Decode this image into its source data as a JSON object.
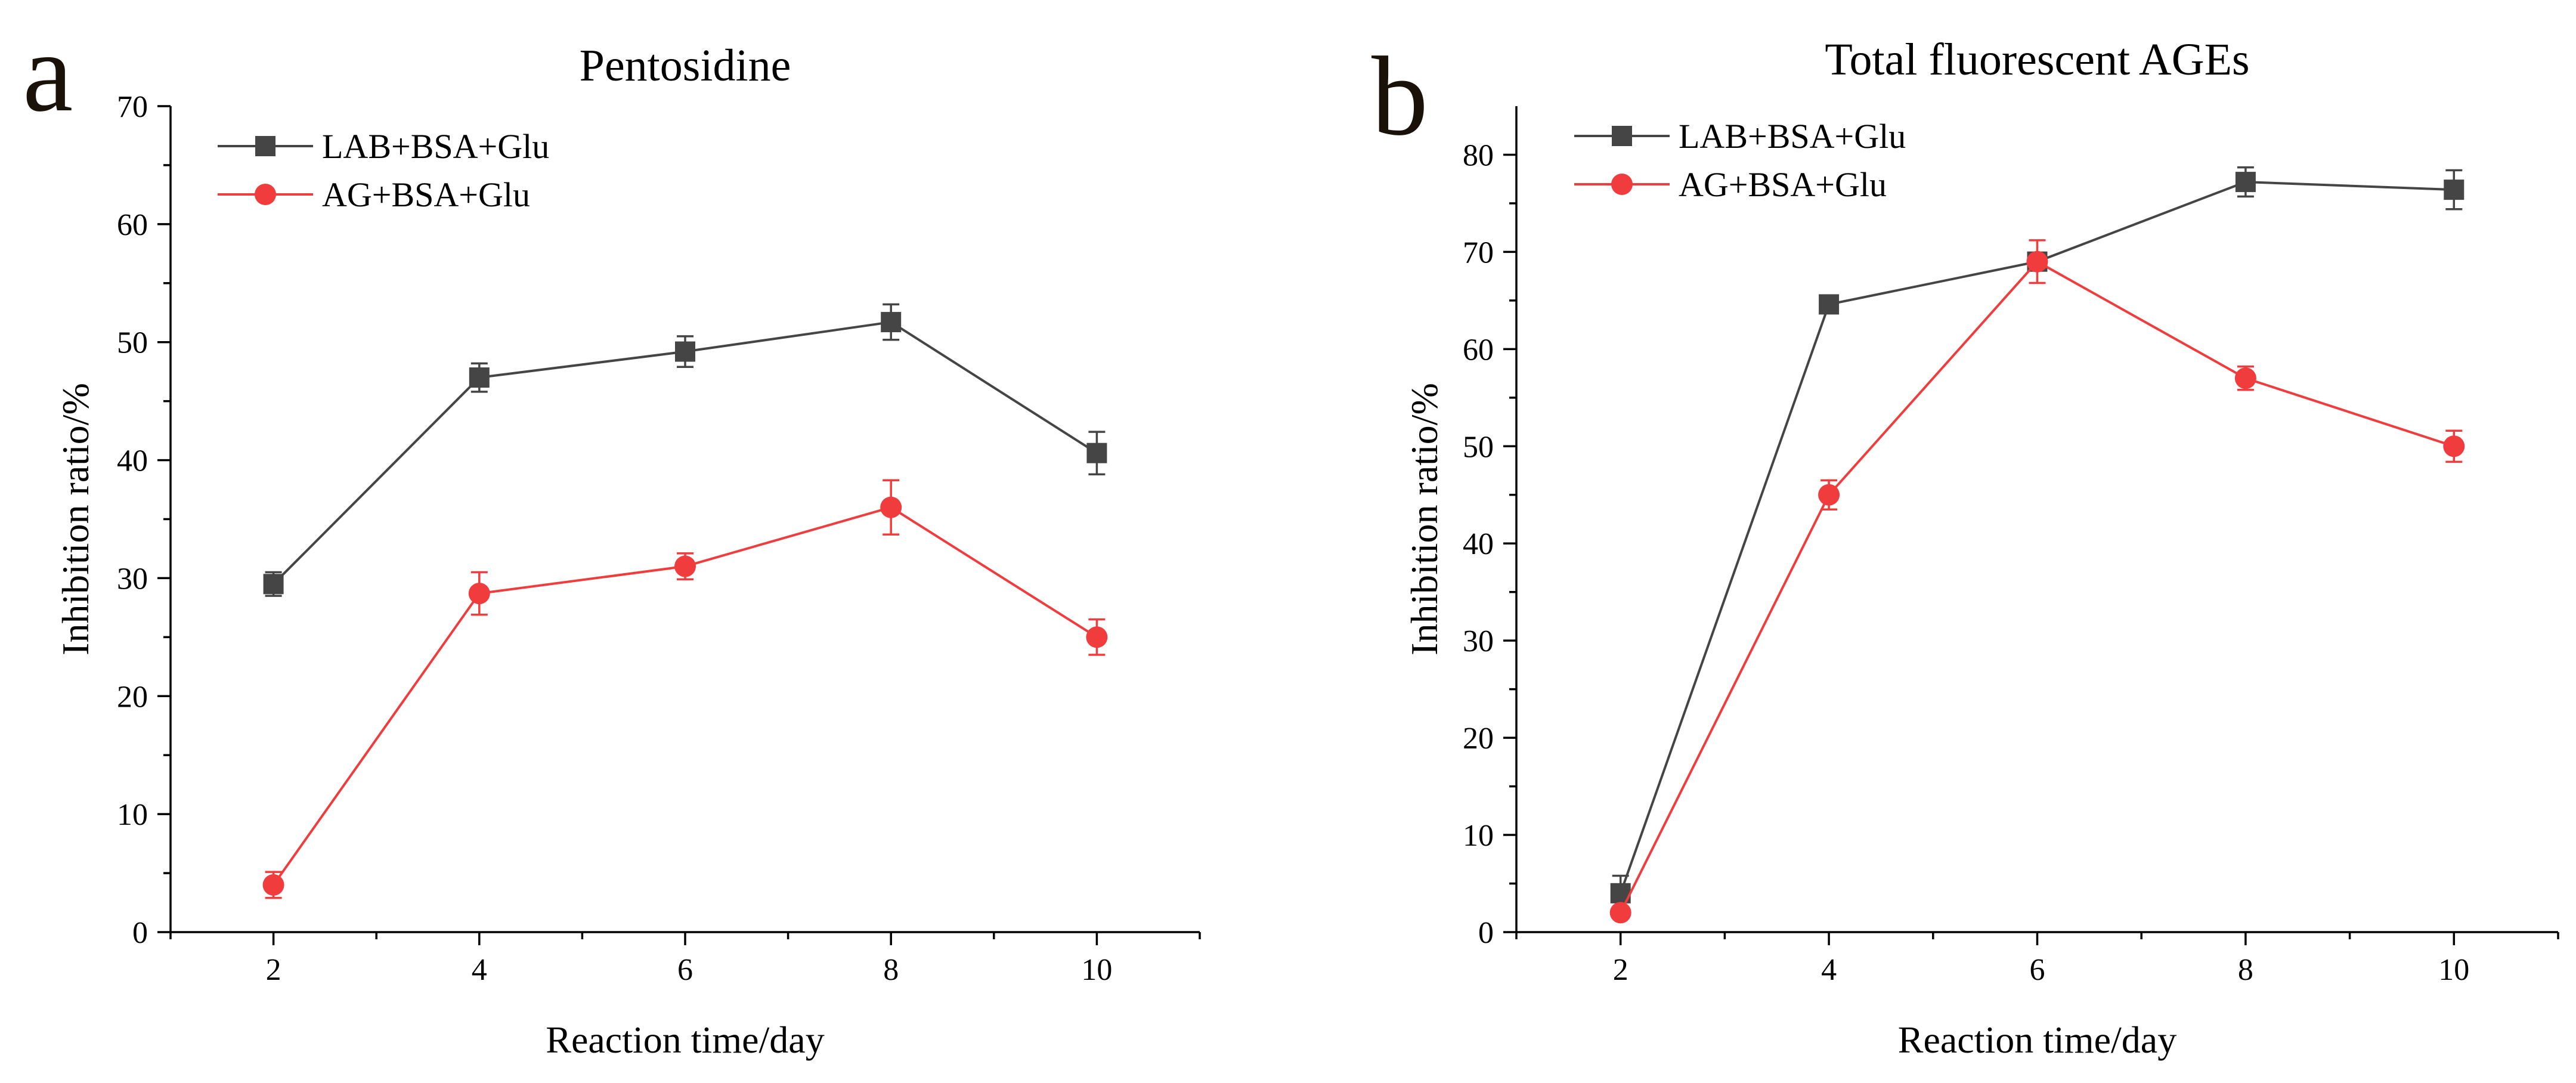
{
  "chart_data": [
    {
      "type": "line",
      "panel_label": "a",
      "title": "Pentosidine",
      "xlabel": "Reaction time/day",
      "ylabel": "Inhibition ratio/%",
      "xlim": [
        1,
        11
      ],
      "ylim": [
        0,
        70
      ],
      "xticks": [
        2,
        4,
        6,
        8,
        10
      ],
      "yticks": [
        0,
        10,
        20,
        30,
        40,
        50,
        60,
        70
      ],
      "x": [
        2,
        4,
        6,
        8,
        10
      ],
      "legend_position": "top-left",
      "series": [
        {
          "name": "LAB+BSA+Glu",
          "color": "#454545",
          "marker": "square",
          "values": [
            29.5,
            47.0,
            49.2,
            51.7,
            40.6
          ],
          "errors": [
            1.0,
            1.2,
            1.3,
            1.5,
            1.8
          ]
        },
        {
          "name": "AG+BSA+Glu",
          "color": "#f03c3c",
          "marker": "circle",
          "values": [
            4.0,
            28.7,
            31.0,
            36.0,
            25.0
          ],
          "errors": [
            1.1,
            1.8,
            1.1,
            2.3,
            1.5
          ]
        }
      ]
    },
    {
      "type": "line",
      "panel_label": "b",
      "title": "Total fluorescent AGEs",
      "xlabel": "Reaction time/day",
      "ylabel": "Inhibition ratio/%",
      "xlim": [
        1,
        11
      ],
      "ylim": [
        0,
        85
      ],
      "xticks": [
        2,
        4,
        6,
        8,
        10
      ],
      "yticks": [
        0,
        10,
        20,
        30,
        40,
        50,
        60,
        70,
        80
      ],
      "x": [
        2,
        4,
        6,
        8,
        10
      ],
      "legend_position": "top-left",
      "series": [
        {
          "name": "LAB+BSA+Glu",
          "color": "#454545",
          "marker": "square",
          "values": [
            4.0,
            64.6,
            69.0,
            77.2,
            76.4
          ],
          "errors": [
            1.8,
            0.8,
            0.8,
            1.5,
            2.0
          ]
        },
        {
          "name": "AG+BSA+Glu",
          "color": "#f03c3c",
          "marker": "circle",
          "values": [
            2.0,
            45.0,
            69.0,
            57.0,
            50.0
          ],
          "errors": [
            0.5,
            1.5,
            2.2,
            1.2,
            1.6
          ]
        }
      ]
    }
  ]
}
